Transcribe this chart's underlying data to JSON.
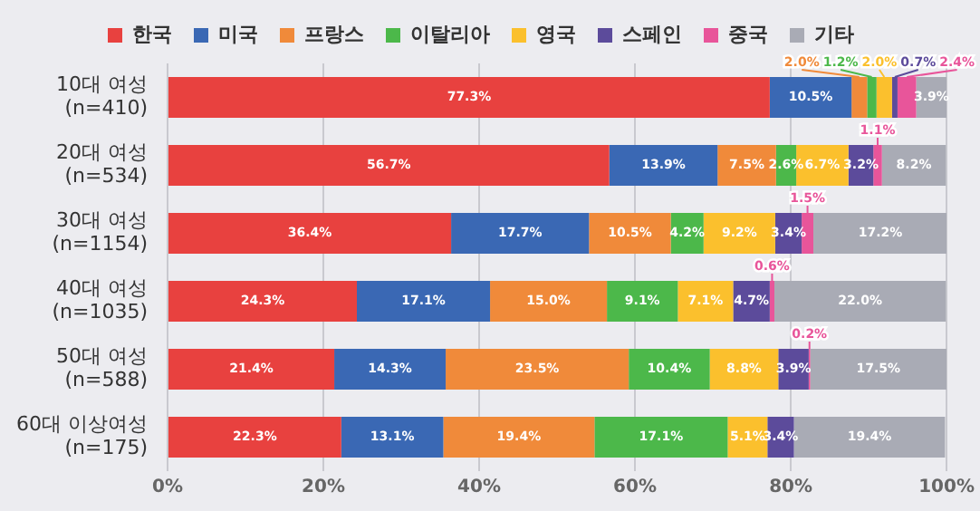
{
  "chart_data": {
    "type": "bar",
    "orientation": "horizontal",
    "stacked": true,
    "legend": "top",
    "grid": "x",
    "categories": [
      "10대 여성\n(n=410)",
      "20대 여성\n(n=534)",
      "30대 여성\n(n=1154)",
      "40대 여성\n(n=1035)",
      "50대 여성\n(n=588)",
      "60대 이상여성\n(n=175)"
    ],
    "xlim": [
      0,
      100
    ],
    "xticks": [
      {
        "value": 0,
        "label": "0%"
      },
      {
        "value": 20,
        "label": "20%"
      },
      {
        "value": 40,
        "label": "40%"
      },
      {
        "value": 60,
        "label": "60%"
      },
      {
        "value": 80,
        "label": "80%"
      },
      {
        "value": 100,
        "label": "100%"
      }
    ],
    "series": [
      {
        "name": "한국",
        "color": "#e8413f",
        "values": [
          77.3,
          56.7,
          36.4,
          24.3,
          21.4,
          22.3
        ],
        "value_labels": [
          "77.3%",
          "56.7%",
          "36.4%",
          "24.3%",
          "21.4%",
          "22.3%"
        ]
      },
      {
        "name": "미국",
        "color": "#3a68b4",
        "values": [
          10.5,
          13.9,
          17.7,
          17.1,
          14.3,
          13.1
        ],
        "value_labels": [
          "10.5%",
          "13.9%",
          "17.7%",
          "17.1%",
          "14.3%",
          "13.1%"
        ]
      },
      {
        "name": "프랑스",
        "color": "#f08a3a",
        "values": [
          2.0,
          7.5,
          10.5,
          15.0,
          23.5,
          19.4
        ],
        "value_labels": [
          "2.0%",
          "7.5%",
          "10.5%",
          "15.0%",
          "23.5%",
          "19.4%"
        ]
      },
      {
        "name": "이탈리아",
        "color": "#4cb84a",
        "values": [
          1.2,
          2.6,
          4.2,
          9.1,
          10.4,
          17.1
        ],
        "value_labels": [
          "1.2%",
          "2.6%",
          "4.2%",
          "9.1%",
          "10.4%",
          "17.1%"
        ]
      },
      {
        "name": "영국",
        "color": "#fbc02d",
        "values": [
          2.0,
          6.7,
          9.2,
          7.1,
          8.8,
          5.1
        ],
        "value_labels": [
          "2.0%",
          "6.7%",
          "9.2%",
          "7.1%",
          "8.8%",
          "5.1%"
        ]
      },
      {
        "name": "스페인",
        "color": "#5c4b9b",
        "values": [
          0.7,
          3.2,
          3.4,
          4.7,
          3.9,
          3.4
        ],
        "value_labels": [
          "0.7%",
          "3.2%",
          "3.4%",
          "4.7%",
          "3.9%",
          "3.4%"
        ]
      },
      {
        "name": "중국",
        "color": "#e8559a",
        "values": [
          2.4,
          1.1,
          1.5,
          0.6,
          0.2,
          null
        ],
        "value_labels": [
          "2.4%",
          "1.1%",
          "1.5%",
          "0.6%",
          "0.2%",
          null
        ]
      },
      {
        "name": "기타",
        "color": "#a9abb5",
        "values": [
          3.9,
          8.2,
          17.2,
          22.0,
          17.5,
          19.4
        ],
        "value_labels": [
          "3.9%",
          "8.2%",
          "17.2%",
          "22.0%",
          "17.5%",
          "19.4%"
        ]
      }
    ]
  }
}
